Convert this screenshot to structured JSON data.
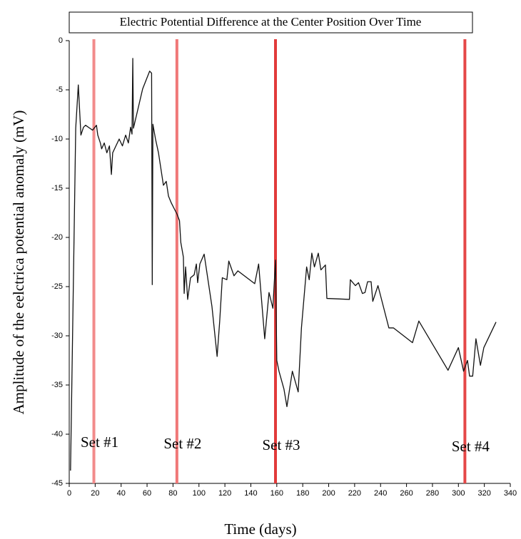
{
  "chart_data": {
    "type": "line",
    "title": "Electric Potential Difference at the Center Position Over Time",
    "x_label": "Time (days)",
    "y_label": "Amplitude of the eelctrica potential anomaly (mV)",
    "color": "#111111",
    "x": [
      1,
      5,
      7,
      9,
      11,
      12.6,
      18,
      21,
      22,
      24,
      25,
      27,
      29,
      31,
      32.5,
      33.5,
      36,
      38.5,
      41,
      43.5,
      45.6,
      47.3,
      48.4,
      49,
      49.5,
      52,
      56.6,
      62,
      63.5,
      64,
      64.5,
      66.5,
      68.8,
      71,
      72.6,
      74.8,
      76.5,
      78.7,
      81.4,
      83,
      85,
      86,
      88,
      88.6,
      89.7,
      91.3,
      93.5,
      96.3,
      98,
      99,
      100.7,
      104,
      110,
      114,
      116,
      118,
      121.5,
      123,
      127,
      130,
      143,
      146,
      150.7,
      154,
      157,
      159,
      160,
      161.7,
      165.5,
      167.8,
      172,
      176.5,
      179,
      183,
      185,
      187,
      189,
      192,
      194,
      197.5,
      198.6,
      216,
      216.7,
      220.6,
      223,
      226,
      228,
      230,
      232.7,
      234,
      238,
      246.4,
      250,
      264.6,
      269.5,
      292,
      300,
      304,
      307,
      308.6,
      311,
      313.5,
      317,
      319.6,
      329
    ],
    "values": [
      -43.7,
      -8.9,
      -4.5,
      -9.6,
      -8.8,
      -8.6,
      -9.1,
      -8.6,
      -9.6,
      -10.4,
      -11,
      -10.4,
      -11.4,
      -10.7,
      -13.6,
      -11.4,
      -10.7,
      -10,
      -10.7,
      -9.6,
      -10.4,
      -8.8,
      -9.5,
      -1.8,
      -8.9,
      -7.5,
      -4.9,
      -3.1,
      -3.3,
      -24.8,
      -8.5,
      -10,
      -11.4,
      -13.3,
      -14.7,
      -14.3,
      -15.8,
      -16.5,
      -17.2,
      -17.6,
      -18.3,
      -20.5,
      -22,
      -25.7,
      -23,
      -26.3,
      -24.1,
      -23.8,
      -22.7,
      -24.6,
      -22.7,
      -21.7,
      -27,
      -32.1,
      -28.5,
      -24.1,
      -24.3,
      -22.4,
      -23.9,
      -23.4,
      -24.7,
      -22.7,
      -30.3,
      -25.6,
      -27.2,
      -22.3,
      -32.5,
      -33.6,
      -35.4,
      -37.2,
      -33.6,
      -35.7,
      -29.2,
      -23,
      -24.3,
      -21.6,
      -23,
      -21.6,
      -23.3,
      -22.8,
      -26.2,
      -26.3,
      -24.3,
      -24.9,
      -24.6,
      -25.7,
      -25.6,
      -24.5,
      -24.5,
      -26.5,
      -24.9,
      -29.2,
      -29.2,
      -30.7,
      -28.5,
      -33.5,
      -31.2,
      -33.6,
      -32.5,
      -34.1,
      -34.1,
      -30.3,
      -33,
      -31.2,
      -28.6
    ],
    "xlim": [
      0,
      340
    ],
    "xticks": [
      0,
      20,
      40,
      60,
      80,
      100,
      120,
      140,
      160,
      180,
      200,
      220,
      240,
      260,
      280,
      300,
      320,
      340
    ],
    "ylim": [
      -45,
      0
    ],
    "yticks": [
      0,
      -5,
      -10,
      -15,
      -20,
      -25,
      -30,
      -35,
      -40,
      -45
    ],
    "markers": [
      {
        "x": 19,
        "label": "Set #1",
        "color": "#f28b8b"
      },
      {
        "x": 83,
        "label": "Set #2",
        "color": "#f07878"
      },
      {
        "x": 159,
        "label": "Set #3",
        "color": "#e23a3a"
      },
      {
        "x": 305,
        "label": "Set #4",
        "color": "#e54848"
      }
    ]
  }
}
